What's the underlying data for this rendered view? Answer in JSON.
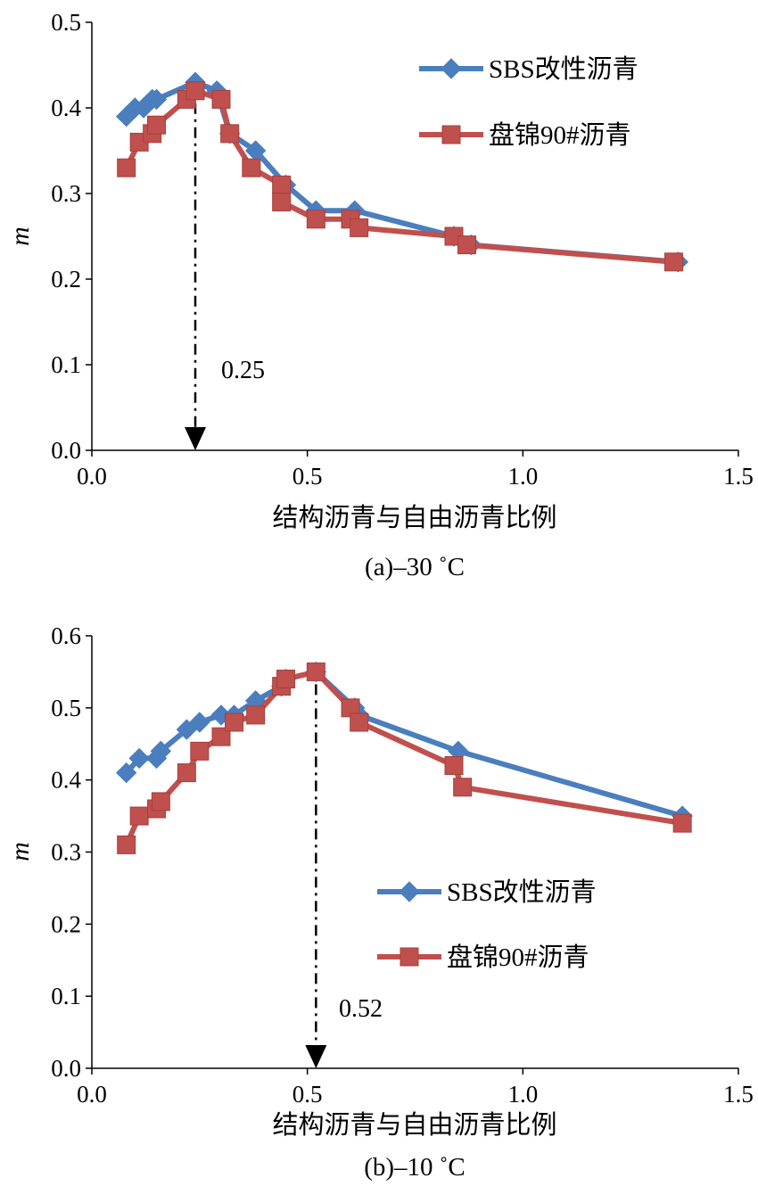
{
  "chart_data": [
    {
      "type": "line",
      "caption": "(a)–30 ˚C",
      "xlabel": "结构沥青与自由沥青比例",
      "ylabel": "m",
      "xlim": [
        0.0,
        1.5
      ],
      "ylim": [
        0.0,
        0.5
      ],
      "xticks": [
        0.0,
        0.5,
        1.0,
        1.5
      ],
      "xtick_labels": [
        "0.0",
        "0.5",
        "1.0",
        "1.5"
      ],
      "yticks": [
        0.0,
        0.1,
        0.2,
        0.3,
        0.4,
        0.5
      ],
      "ytick_labels": [
        "0.0",
        "0.1",
        "0.2",
        "0.3",
        "0.4",
        "0.5"
      ],
      "grid": false,
      "legend_position": "top-right",
      "annotation": {
        "label": "0.25",
        "x": 0.24,
        "y": 0.42
      },
      "series": [
        {
          "name": "SBS改性沥青",
          "color": "#4a7ebf",
          "marker": "diamond",
          "points": [
            [
              0.08,
              0.39
            ],
            [
              0.1,
              0.4
            ],
            [
              0.12,
              0.4
            ],
            [
              0.14,
              0.41
            ],
            [
              0.15,
              0.41
            ],
            [
              0.24,
              0.43
            ],
            [
              0.29,
              0.42
            ],
            [
              0.32,
              0.37
            ],
            [
              0.38,
              0.35
            ],
            [
              0.45,
              0.31
            ],
            [
              0.52,
              0.28
            ],
            [
              0.61,
              0.28
            ],
            [
              0.84,
              0.25
            ],
            [
              0.88,
              0.24
            ],
            [
              1.36,
              0.22
            ]
          ]
        },
        {
          "name": "盘锦90#沥青",
          "color": "#c0504d",
          "marker": "square",
          "points": [
            [
              0.08,
              0.33
            ],
            [
              0.11,
              0.36
            ],
            [
              0.14,
              0.37
            ],
            [
              0.15,
              0.38
            ],
            [
              0.22,
              0.41
            ],
            [
              0.24,
              0.42
            ],
            [
              0.3,
              0.41
            ],
            [
              0.32,
              0.37
            ],
            [
              0.37,
              0.33
            ],
            [
              0.44,
              0.31
            ],
            [
              0.44,
              0.29
            ],
            [
              0.52,
              0.27
            ],
            [
              0.6,
              0.27
            ],
            [
              0.62,
              0.26
            ],
            [
              0.84,
              0.25
            ],
            [
              0.87,
              0.24
            ],
            [
              1.35,
              0.22
            ]
          ]
        }
      ]
    },
    {
      "type": "line",
      "caption": "(b)–10 ˚C",
      "xlabel": "结构沥青与自由沥青比例",
      "ylabel": "m",
      "xlim": [
        0.0,
        1.5
      ],
      "ylim": [
        0.0,
        0.6
      ],
      "xticks": [
        0.0,
        0.5,
        1.0,
        1.5
      ],
      "xtick_labels": [
        "0.0",
        "0.5",
        "1.0",
        "1.5"
      ],
      "yticks": [
        0.0,
        0.1,
        0.2,
        0.3,
        0.4,
        0.5,
        0.6
      ],
      "ytick_labels": [
        "0.0",
        "0.1",
        "0.2",
        "0.3",
        "0.4",
        "0.5",
        "0.6"
      ],
      "grid": false,
      "legend_position": "center-right",
      "annotation": {
        "label": "0.52",
        "x": 0.52,
        "y": 0.55
      },
      "series": [
        {
          "name": "SBS改性沥青",
          "color": "#4a7ebf",
          "marker": "diamond",
          "points": [
            [
              0.08,
              0.41
            ],
            [
              0.11,
              0.43
            ],
            [
              0.15,
              0.43
            ],
            [
              0.16,
              0.44
            ],
            [
              0.22,
              0.47
            ],
            [
              0.25,
              0.48
            ],
            [
              0.3,
              0.49
            ],
            [
              0.33,
              0.49
            ],
            [
              0.38,
              0.51
            ],
            [
              0.44,
              0.53
            ],
            [
              0.45,
              0.54
            ],
            [
              0.52,
              0.55
            ],
            [
              0.61,
              0.5
            ],
            [
              0.62,
              0.49
            ],
            [
              0.85,
              0.44
            ],
            [
              1.37,
              0.35
            ]
          ]
        },
        {
          "name": "盘锦90#沥青",
          "color": "#c0504d",
          "marker": "square",
          "points": [
            [
              0.08,
              0.31
            ],
            [
              0.11,
              0.35
            ],
            [
              0.15,
              0.36
            ],
            [
              0.16,
              0.37
            ],
            [
              0.22,
              0.41
            ],
            [
              0.25,
              0.44
            ],
            [
              0.3,
              0.46
            ],
            [
              0.33,
              0.48
            ],
            [
              0.38,
              0.49
            ],
            [
              0.44,
              0.53
            ],
            [
              0.45,
              0.54
            ],
            [
              0.52,
              0.55
            ],
            [
              0.6,
              0.5
            ],
            [
              0.62,
              0.48
            ],
            [
              0.84,
              0.42
            ],
            [
              0.86,
              0.39
            ],
            [
              1.37,
              0.34
            ]
          ]
        }
      ]
    }
  ]
}
